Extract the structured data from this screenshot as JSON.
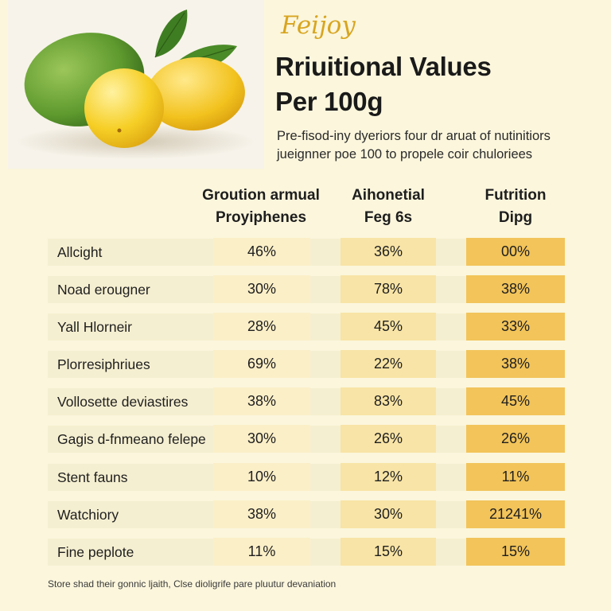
{
  "brand": "Feijoy",
  "title_line1": "Rriuitional Values",
  "title_line2": "Per 100g",
  "subtitle_line1": "Pre-fisod-iny dyeriors four dr aruat of nutinitiors",
  "subtitle_line2": "jueignner poe 100 to propele coir chuloriees",
  "columns": [
    {
      "line1": "Groution armual",
      "line2": "Proyiphenes"
    },
    {
      "line1": "Aihonetial",
      "line2": "Feg 6s"
    },
    {
      "line1": "Futrition",
      "line2": "Dipg"
    }
  ],
  "rows": [
    {
      "label": "Allcight",
      "v1": "46%",
      "v2": "36%",
      "v3": "00%"
    },
    {
      "label": "Noad erougner",
      "v1": "30%",
      "v2": "78%",
      "v3": "38%"
    },
    {
      "label": "Yall Hlorneir",
      "v1": "28%",
      "v2": "45%",
      "v3": "33%"
    },
    {
      "label": "Plorresiphriues",
      "v1": "69%",
      "v2": "22%",
      "v3": "38%"
    },
    {
      "label": "Vollosette deviastires",
      "v1": "38%",
      "v2": "83%",
      "v3": "45%"
    },
    {
      "label": "Gagis d-fnmeano felepe",
      "v1": "30%",
      "v2": "26%",
      "v3": "26%"
    },
    {
      "label": "Stent fauns",
      "v1": "10%",
      "v2": "12%",
      "v3": "11%"
    },
    {
      "label": "Watchiory",
      "v1": "38%",
      "v2": "30%",
      "v3": "21241%"
    },
    {
      "label": "Fine peplote",
      "v1": "11%",
      "v2": "15%",
      "v3": "15%"
    }
  ],
  "footnote": "Store shad their gonnic ljaith, Clse dioligrife pare pluutur devaniation",
  "colors": {
    "background": "#fbf6dc",
    "brand": "#d8a520",
    "col1_fill": "#fbefc8",
    "col2_fill": "#f8e4a6",
    "col3_fill": "#f2c45a"
  }
}
